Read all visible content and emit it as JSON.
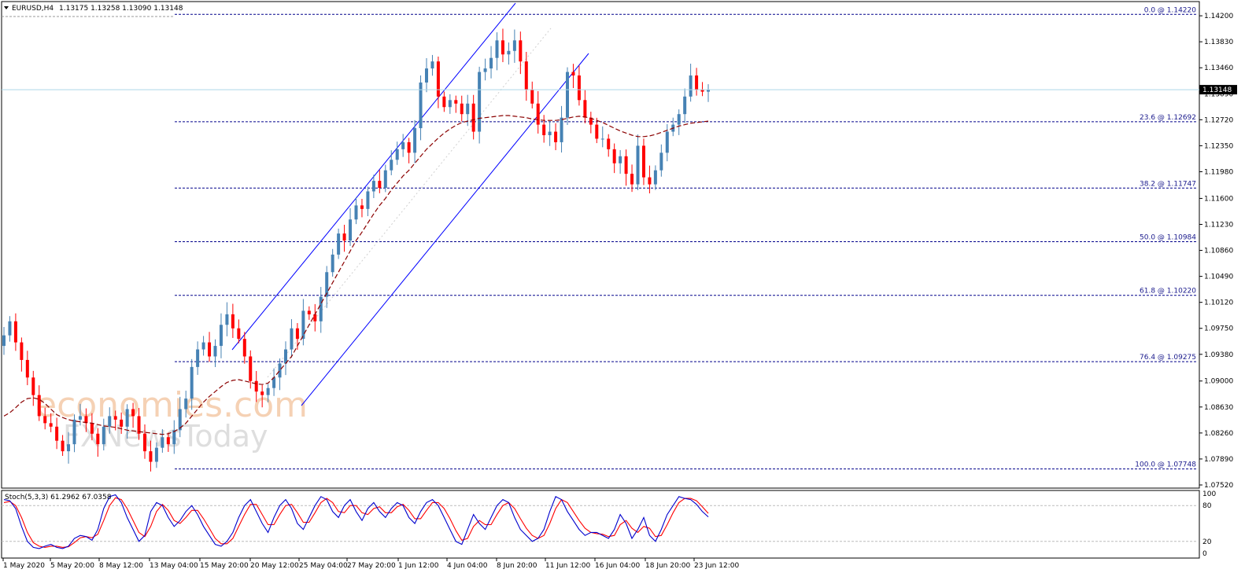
{
  "header": {
    "symbol_label": "EURUSD,H4",
    "ohlc": "1.13175 1.13258 1.13090 1.13148"
  },
  "current_price": "1.13148",
  "stoch_label": "Stoch(5,3,3) 61.2962 67.0358",
  "watermark": {
    "line1": "economies.com",
    "line2": "FXNewsToday"
  },
  "colors": {
    "bull": "#4682b4",
    "bear": "#ff0000",
    "fib": "#00008b",
    "channel": "#0000ff",
    "ma": "#8b0000",
    "stoch_main": "#0000cd",
    "stoch_signal": "#ff0000",
    "price_line": "#add8e6"
  },
  "chart_data": {
    "type": "candlestick",
    "ylim": [
      1.0752,
      1.1438
    ],
    "y_ticks": [
      "1.14200",
      "1.13830",
      "1.13460",
      "1.13090",
      "1.12720",
      "1.12350",
      "1.11980",
      "1.11600",
      "1.11230",
      "1.10860",
      "1.10490",
      "1.10120",
      "1.09750",
      "1.09380",
      "1.09000",
      "1.08630",
      "1.08260",
      "1.07890",
      "1.07520"
    ],
    "x_ticks": [
      "1 May 2020",
      "5 May 20:00",
      "8 May 12:00",
      "13 May 04:00",
      "15 May 20:00",
      "20 May 12:00",
      "25 May 04:00",
      "27 May 20:00",
      "1 Jun 12:00",
      "4 Jun 04:00",
      "8 Jun 20:00",
      "11 Jun 12:00",
      "16 Jun 04:00",
      "18 Jun 20:00",
      "23 Jun 12:00"
    ],
    "fibonacci": [
      {
        "label": "0.0 @ 1.14220",
        "price": 1.1422
      },
      {
        "label": "23.6 @ 1.12692",
        "price": 1.12692
      },
      {
        "label": "38.2 @ 1.11747",
        "price": 1.11747
      },
      {
        "label": "50.0 @ 1.10984",
        "price": 1.10984
      },
      {
        "label": "61.8 @ 1.10220",
        "price": 1.1022
      },
      {
        "label": "76.4 @ 1.09275",
        "price": 1.09275
      },
      {
        "label": "100.0 @ 1.07748",
        "price": 1.07748
      }
    ],
    "close_path": [
      1.0965,
      1.0985,
      1.0955,
      1.093,
      1.0905,
      1.088,
      1.085,
      1.084,
      1.0835,
      1.0815,
      1.08,
      1.081,
      1.0845,
      1.085,
      1.084,
      1.0825,
      1.081,
      1.0835,
      1.085,
      1.0845,
      1.0835,
      1.086,
      1.085,
      1.0825,
      1.08,
      1.0785,
      1.0805,
      1.082,
      1.081,
      1.083,
      1.086,
      1.0875,
      1.092,
      1.0945,
      1.0955,
      1.0935,
      1.095,
      1.098,
      1.0995,
      1.0975,
      1.096,
      1.0935,
      1.09,
      1.0885,
      1.088,
      1.089,
      1.0905,
      1.0925,
      1.0945,
      1.0975,
      1.096,
      1.1,
      1.0995,
      1.0985,
      1.102,
      1.1055,
      1.108,
      1.111,
      1.11,
      1.113,
      1.115,
      1.1145,
      1.117,
      1.1185,
      1.1175,
      1.12,
      1.1215,
      1.123,
      1.124,
      1.1225,
      1.126,
      1.1325,
      1.1345,
      1.1355,
      1.1305,
      1.129,
      1.13,
      1.1295,
      1.128,
      1.1295,
      1.1255,
      1.134,
      1.1345,
      1.136,
      1.1385,
      1.1365,
      1.137,
      1.1385,
      1.1355,
      1.1315,
      1.1295,
      1.1265,
      1.125,
      1.1255,
      1.124,
      1.1275,
      1.134,
      1.1335,
      1.13,
      1.1275,
      1.1265,
      1.1245,
      1.1245,
      1.123,
      1.121,
      1.122,
      1.1195,
      1.118,
      1.1235,
      1.119,
      1.118,
      1.12,
      1.1225,
      1.1255,
      1.1265,
      1.128,
      1.1305,
      1.1335,
      1.1315,
      1.1312,
      1.1315
    ],
    "ma_path": [
      1.085,
      1.0855,
      1.0862,
      1.087,
      1.0875,
      1.0876,
      1.0874,
      1.0868,
      1.086,
      1.0852,
      1.0848,
      1.0845,
      1.0843,
      1.0842,
      1.0841,
      1.084,
      1.0838,
      1.0836,
      1.0835,
      1.0834,
      1.0832,
      1.083,
      1.0829,
      1.0828,
      1.0827,
      1.0826,
      1.0825,
      1.0824,
      1.0825,
      1.0828,
      1.0833,
      1.084,
      1.085,
      1.086,
      1.087,
      1.0878,
      1.0885,
      1.0892,
      1.0898,
      1.0901,
      1.0902,
      1.09,
      1.0898,
      1.0896,
      1.0895,
      1.0897,
      1.0905,
      1.0915,
      1.0925,
      1.0935,
      1.095,
      1.0965,
      1.098,
      1.0995,
      1.101,
      1.1025,
      1.104,
      1.1055,
      1.107,
      1.1085,
      1.11,
      1.1112,
      1.1125,
      1.1138,
      1.115,
      1.116,
      1.1172,
      1.1182,
      1.1192,
      1.12,
      1.121,
      1.122,
      1.123,
      1.1238,
      1.1246,
      1.1253,
      1.1259,
      1.1264,
      1.1268,
      1.127,
      1.1272,
      1.1274,
      1.1275,
      1.1276,
      1.1277,
      1.1278,
      1.1278,
      1.1277,
      1.1276,
      1.1275,
      1.1273,
      1.1272,
      1.1271,
      1.1271,
      1.1271,
      1.1272,
      1.1274,
      1.1276,
      1.1277,
      1.1276,
      1.1274,
      1.1271,
      1.1268,
      1.1264,
      1.126,
      1.1256,
      1.1253,
      1.125,
      1.1248,
      1.1248,
      1.1249,
      1.1251,
      1.1254,
      1.1257,
      1.126,
      1.1263,
      1.1265,
      1.1267,
      1.1268,
      1.1269,
      1.127
    ],
    "stoch_levels": [
      80,
      20
    ],
    "stoch_axis_labels": [
      "100",
      "80",
      "20",
      "0"
    ],
    "stoch_k": [
      90,
      88,
      75,
      45,
      20,
      10,
      8,
      12,
      15,
      10,
      8,
      12,
      25,
      30,
      28,
      22,
      40,
      75,
      95,
      98,
      85,
      60,
      40,
      20,
      30,
      70,
      85,
      80,
      60,
      45,
      55,
      70,
      80,
      65,
      45,
      30,
      15,
      12,
      20,
      35,
      60,
      80,
      90,
      70,
      50,
      35,
      60,
      80,
      90,
      75,
      50,
      40,
      60,
      80,
      95,
      90,
      70,
      60,
      80,
      90,
      70,
      55,
      75,
      85,
      70,
      60,
      75,
      85,
      80,
      60,
      50,
      70,
      85,
      90,
      80,
      60,
      40,
      20,
      15,
      40,
      65,
      50,
      40,
      60,
      80,
      90,
      85,
      60,
      40,
      30,
      20,
      25,
      40,
      70,
      95,
      90,
      70,
      55,
      40,
      30,
      35,
      35,
      30,
      25,
      40,
      65,
      50,
      25,
      40,
      60,
      30,
      20,
      40,
      65,
      80,
      95,
      92,
      90,
      82,
      70,
      61
    ],
    "stoch_d": [
      85,
      87,
      80,
      60,
      35,
      18,
      12,
      10,
      12,
      12,
      10,
      11,
      18,
      26,
      28,
      26,
      32,
      55,
      80,
      93,
      90,
      75,
      55,
      35,
      28,
      45,
      70,
      82,
      72,
      55,
      50,
      60,
      72,
      72,
      58,
      42,
      25,
      16,
      16,
      25,
      45,
      65,
      82,
      82,
      65,
      48,
      48,
      65,
      80,
      82,
      68,
      52,
      52,
      68,
      85,
      92,
      85,
      70,
      68,
      80,
      80,
      68,
      65,
      75,
      78,
      68,
      68,
      78,
      82,
      72,
      58,
      58,
      72,
      85,
      85,
      75,
      58,
      38,
      22,
      25,
      45,
      55,
      48,
      48,
      65,
      80,
      85,
      75,
      58,
      42,
      30,
      25,
      30,
      50,
      75,
      90,
      85,
      70,
      55,
      42,
      35,
      33,
      32,
      28,
      30,
      48,
      55,
      42,
      35,
      45,
      42,
      28,
      30,
      48,
      68,
      85,
      92,
      92,
      88,
      78,
      67
    ]
  }
}
